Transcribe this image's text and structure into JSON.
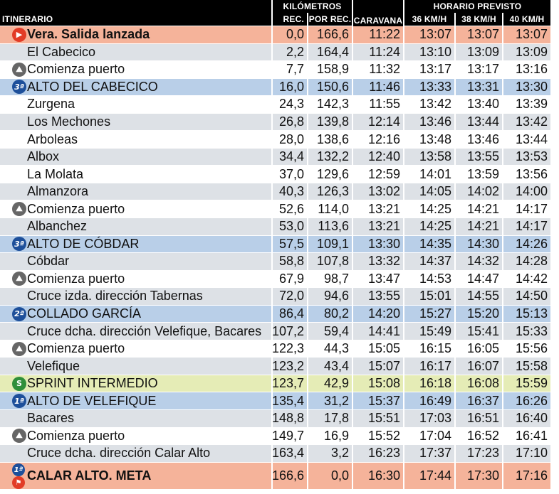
{
  "header": {
    "itinerario": "ITINERARIO",
    "kilometros": "KILÓMETROS",
    "rec": "REC.",
    "por_rec": "POR REC.",
    "caravana": "CARAVANA",
    "horario": "HORARIO PREVISTO",
    "kmh36": "36 KM/H",
    "kmh38": "38 KM/H",
    "kmh40": "40 KM/H"
  },
  "rows": [
    {
      "name": "Vera. Salida lanzada",
      "rec": "0,0",
      "por": "166,6",
      "car": "11:22",
      "t36": "13:07",
      "t38": "13:07",
      "t40": "13:07",
      "style": "orange",
      "icon": "start",
      "icon_text": "▶",
      "bold": true
    },
    {
      "name": "El Cabecico",
      "rec": "2,2",
      "por": "164,4",
      "car": "11:24",
      "t36": "13:10",
      "t38": "13:09",
      "t40": "13:09",
      "style": "light",
      "icon": "",
      "icon_text": "",
      "bold": false
    },
    {
      "name": "Comienza puerto",
      "rec": "7,7",
      "por": "158,9",
      "car": "11:32",
      "t36": "13:17",
      "t38": "13:17",
      "t40": "13:16",
      "style": "white",
      "icon": "climb",
      "icon_text": "⛰",
      "bold": false
    },
    {
      "name": "ALTO DEL CABECICO",
      "rec": "16,0",
      "por": "150,6",
      "car": "11:46",
      "t36": "13:33",
      "t38": "13:31",
      "t40": "13:30",
      "style": "blue",
      "icon": "cat",
      "icon_text": "3ª",
      "bold": false
    },
    {
      "name": "Zurgena",
      "rec": "24,3",
      "por": "142,3",
      "car": "11:55",
      "t36": "13:42",
      "t38": "13:40",
      "t40": "13:39",
      "style": "white",
      "icon": "",
      "icon_text": "",
      "bold": false
    },
    {
      "name": "Los Mechones",
      "rec": "26,8",
      "por": "139,8",
      "car": "12:14",
      "t36": "13:46",
      "t38": "13:44",
      "t40": "13:42",
      "style": "light",
      "icon": "",
      "icon_text": "",
      "bold": false
    },
    {
      "name": "Arboleas",
      "rec": "28,0",
      "por": "138,6",
      "car": "12:16",
      "t36": "13:48",
      "t38": "13:46",
      "t40": "13:44",
      "style": "white",
      "icon": "",
      "icon_text": "",
      "bold": false
    },
    {
      "name": "Albox",
      "rec": "34,4",
      "por": "132,2",
      "car": "12:40",
      "t36": "13:58",
      "t38": "13:55",
      "t40": "13:53",
      "style": "light",
      "icon": "",
      "icon_text": "",
      "bold": false
    },
    {
      "name": "La Molata",
      "rec": "37,0",
      "por": "129,6",
      "car": "12:59",
      "t36": "14:01",
      "t38": "13:59",
      "t40": "13:56",
      "style": "white",
      "icon": "",
      "icon_text": "",
      "bold": false
    },
    {
      "name": "Almanzora",
      "rec": "40,3",
      "por": "126,3",
      "car": "13:02",
      "t36": "14:05",
      "t38": "14:02",
      "t40": "14:00",
      "style": "light",
      "icon": "",
      "icon_text": "",
      "bold": false
    },
    {
      "name": "Comienza puerto",
      "rec": "52,6",
      "por": "114,0",
      "car": "13:21",
      "t36": "14:25",
      "t38": "14:21",
      "t40": "14:17",
      "style": "white",
      "icon": "climb",
      "icon_text": "⛰",
      "bold": false
    },
    {
      "name": "Albanchez",
      "rec": "53,0",
      "por": "113,6",
      "car": "13:21",
      "t36": "14:25",
      "t38": "14:21",
      "t40": "14:17",
      "style": "light",
      "icon": "",
      "icon_text": "",
      "bold": false
    },
    {
      "name": "ALTO DE CÓBDAR",
      "rec": "57,5",
      "por": "109,1",
      "car": "13:30",
      "t36": "14:35",
      "t38": "14:30",
      "t40": "14:26",
      "style": "blue",
      "icon": "cat",
      "icon_text": "3ª",
      "bold": false
    },
    {
      "name": "Cóbdar",
      "rec": "58,8",
      "por": "107,8",
      "car": "13:32",
      "t36": "14:37",
      "t38": "14:32",
      "t40": "14:28",
      "style": "light",
      "icon": "",
      "icon_text": "",
      "bold": false
    },
    {
      "name": "Comienza puerto",
      "rec": "67,9",
      "por": "98,7",
      "car": "13:47",
      "t36": "14:53",
      "t38": "14:47",
      "t40": "14:42",
      "style": "white",
      "icon": "climb",
      "icon_text": "⛰",
      "bold": false
    },
    {
      "name": "Cruce izda. dirección Tabernas",
      "rec": "72,0",
      "por": "94,6",
      "car": "13:55",
      "t36": "15:01",
      "t38": "14:55",
      "t40": "14:50",
      "style": "light",
      "icon": "",
      "icon_text": "",
      "bold": false
    },
    {
      "name": "COLLADO GARCÍA",
      "rec": "86,4",
      "por": "80,2",
      "car": "14:20",
      "t36": "15:27",
      "t38": "15:20",
      "t40": "15:13",
      "style": "blue",
      "icon": "cat",
      "icon_text": "2ª",
      "bold": false
    },
    {
      "name": "Cruce dcha. dirección Velefique, Bacares",
      "rec": "107,2",
      "por": "59,4",
      "car": "14:41",
      "t36": "15:49",
      "t38": "15:41",
      "t40": "15:33",
      "style": "light",
      "icon": "",
      "icon_text": "",
      "bold": false
    },
    {
      "name": "Comienza puerto",
      "rec": "122,3",
      "por": "44,3",
      "car": "15:05",
      "t36": "16:15",
      "t38": "16:05",
      "t40": "15:56",
      "style": "white",
      "icon": "climb",
      "icon_text": "⛰",
      "bold": false
    },
    {
      "name": "Velefique",
      "rec": "123,2",
      "por": "43,4",
      "car": "15:07",
      "t36": "16:17",
      "t38": "16:07",
      "t40": "15:58",
      "style": "light",
      "icon": "",
      "icon_text": "",
      "bold": false
    },
    {
      "name": "SPRINT INTERMEDIO",
      "rec": "123,7",
      "por": "42,9",
      "car": "15:08",
      "t36": "16:18",
      "t38": "16:08",
      "t40": "15:59",
      "style": "green",
      "icon": "sprint",
      "icon_text": "S",
      "bold": false
    },
    {
      "name": "ALTO DE VELEFIQUE",
      "rec": "135,4",
      "por": "31,2",
      "car": "15:37",
      "t36": "16:49",
      "t38": "16:37",
      "t40": "16:26",
      "style": "blue",
      "icon": "cat",
      "icon_text": "1ª",
      "bold": false
    },
    {
      "name": "Bacares",
      "rec": "148,8",
      "por": "17,8",
      "car": "15:51",
      "t36": "17:03",
      "t38": "16:51",
      "t40": "16:40",
      "style": "light",
      "icon": "",
      "icon_text": "",
      "bold": false
    },
    {
      "name": "Comienza puerto",
      "rec": "149,7",
      "por": "16,9",
      "car": "15:52",
      "t36": "17:04",
      "t38": "16:52",
      "t40": "16:41",
      "style": "white",
      "icon": "climb",
      "icon_text": "⛰",
      "bold": false
    },
    {
      "name": "Cruce dcha. dirección Calar Alto",
      "rec": "163,4",
      "por": "3,2",
      "car": "16:23",
      "t36": "17:37",
      "t38": "17:23",
      "t40": "17:10",
      "style": "light",
      "icon": "",
      "icon_text": "",
      "bold": false
    },
    {
      "name": "CALAR ALTO. META",
      "rec": "166,6",
      "por": "0,0",
      "car": "16:30",
      "t36": "17:44",
      "t38": "17:30",
      "t40": "17:16",
      "style": "orange",
      "icon": "finish",
      "icon_text": "1ª",
      "icon_text_b": "⚑",
      "bold": true
    }
  ]
}
